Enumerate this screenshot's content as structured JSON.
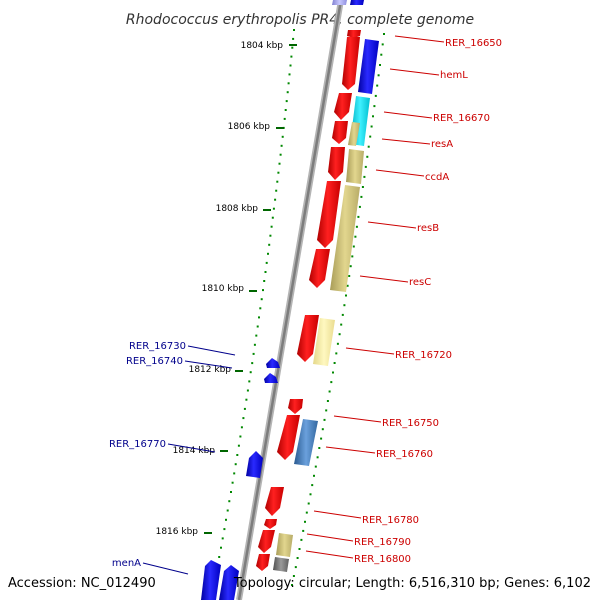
{
  "title": "Rhodococcus erythropolis PR4, complete genome",
  "footer": {
    "accession": "Accession: NC_012490",
    "topology": "Topology: circular; Length: 6,516,310 bp; Genes: 6,102"
  },
  "ticks": [
    {
      "label": "1804 kbp"
    },
    {
      "label": "1806 kbp"
    },
    {
      "label": "1808 kbp"
    },
    {
      "label": "1810 kbp"
    },
    {
      "label": "1812 kbp"
    },
    {
      "label": "1814 kbp"
    },
    {
      "label": "1816 kbp"
    }
  ],
  "genes": {
    "forward": [
      {
        "name": "RER_16650",
        "color": "#cc0000"
      },
      {
        "name": "hemL",
        "color": "#cc0000"
      },
      {
        "name": "RER_16670",
        "color": "#cc0000"
      },
      {
        "name": "resA",
        "color": "#cc0000"
      },
      {
        "name": "ccdA",
        "color": "#cc0000"
      },
      {
        "name": "resB",
        "color": "#cc0000"
      },
      {
        "name": "resC",
        "color": "#cc0000"
      },
      {
        "name": "RER_16720",
        "color": "#cc0000"
      },
      {
        "name": "RER_16750",
        "color": "#cc0000"
      },
      {
        "name": "RER_16760",
        "color": "#cc0000"
      },
      {
        "name": "RER_16780",
        "color": "#cc0000"
      },
      {
        "name": "RER_16790",
        "color": "#cc0000"
      },
      {
        "name": "RER_16800",
        "color": "#cc0000"
      }
    ],
    "reverse": [
      {
        "name": "RER_16730",
        "color": "#00008b"
      },
      {
        "name": "RER_16740",
        "color": "#00008b"
      },
      {
        "name": "RER_16770",
        "color": "#00008b"
      },
      {
        "name": "menA",
        "color": "#00008b"
      }
    ]
  },
  "colors": {
    "cds_forward": "#ff0000",
    "cds_reverse": "#0000ff",
    "gc_dots": "#007700",
    "backbone": "#8c8c8c"
  }
}
